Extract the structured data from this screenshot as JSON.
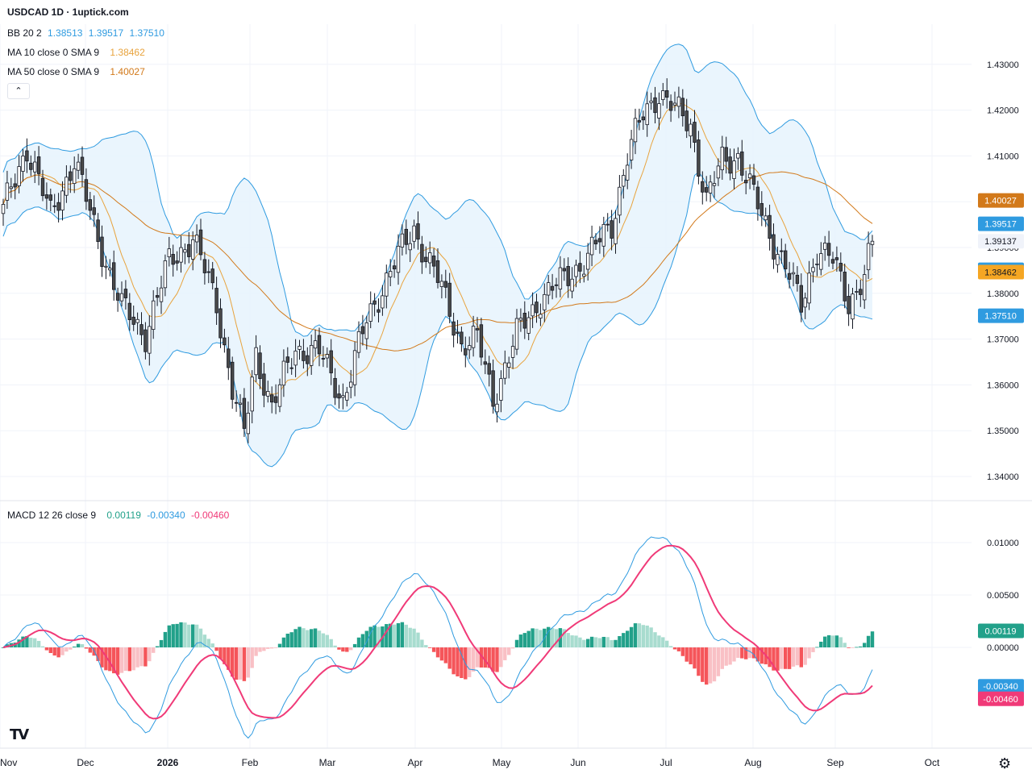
{
  "header": {
    "title": "USDCAD 1D · 1uptick.com",
    "bb": {
      "label": "BB 20 2",
      "basis": "1.38513",
      "upper": "1.39517",
      "lower": "1.37510"
    },
    "ma10": {
      "label": "MA 10 close 0 SMA 9",
      "value": "1.38462"
    },
    "ma50": {
      "label": "MA 50 close 0 SMA 9",
      "value": "1.40027"
    },
    "collapse_icon": "chevron-up-icon"
  },
  "macd_legend": {
    "label": "MACD 12 26 close 9",
    "hist": "0.00119",
    "macd": "-0.00340",
    "signal": "-0.00460"
  },
  "colors": {
    "up": "#ffffff",
    "down": "#4a4a4a",
    "bb_line": "#2f9be0",
    "bb_fill": "#e6f3fd",
    "ma10": "#e8a33d",
    "ma50": "#d2791a",
    "macd": "#2f9be0",
    "signal": "#f03a78",
    "hist_pos_strong": "#22a18a",
    "hist_pos_weak": "#a8dccf",
    "hist_neg_strong": "#f5555a",
    "hist_neg_weak": "#f9c0c5"
  },
  "chart_data": [
    {
      "type": "candlestick",
      "title": "USDCAD 1D",
      "xlabel": "",
      "ylabel": "",
      "ylim": [
        1.335,
        1.44
      ],
      "x_ticks": [
        "Nov",
        "Dec",
        "2026",
        "Feb",
        "Mar",
        "Apr",
        "May",
        "Jun",
        "Jul",
        "Aug",
        "Sep",
        "Oct"
      ],
      "y_ticks": [
        "1.43000",
        "1.42000",
        "1.41000",
        "1.40000",
        "1.39000",
        "1.38000",
        "1.37000",
        "1.36000",
        "1.35000",
        "1.34000"
      ],
      "price_anchors": [
        {
          "x": 0,
          "close": 1.398
        },
        {
          "x": 6,
          "close": 1.412
        },
        {
          "x": 12,
          "close": 1.397
        },
        {
          "x": 18,
          "close": 1.409
        },
        {
          "x": 24,
          "close": 1.392
        },
        {
          "x": 30,
          "close": 1.377
        },
        {
          "x": 36,
          "close": 1.371
        },
        {
          "x": 42,
          "close": 1.387
        },
        {
          "x": 48,
          "close": 1.392
        },
        {
          "x": 54,
          "close": 1.378
        },
        {
          "x": 58,
          "close": 1.359
        },
        {
          "x": 61,
          "close": 1.349
        },
        {
          "x": 64,
          "close": 1.367
        },
        {
          "x": 68,
          "close": 1.355
        },
        {
          "x": 74,
          "close": 1.368
        },
        {
          "x": 80,
          "close": 1.367
        },
        {
          "x": 86,
          "close": 1.357
        },
        {
          "x": 92,
          "close": 1.374
        },
        {
          "x": 98,
          "close": 1.385
        },
        {
          "x": 104,
          "close": 1.394
        },
        {
          "x": 110,
          "close": 1.383
        },
        {
          "x": 116,
          "close": 1.369
        },
        {
          "x": 120,
          "close": 1.37
        },
        {
          "x": 124,
          "close": 1.357
        },
        {
          "x": 130,
          "close": 1.371
        },
        {
          "x": 136,
          "close": 1.379
        },
        {
          "x": 142,
          "close": 1.383
        },
        {
          "x": 148,
          "close": 1.388
        },
        {
          "x": 154,
          "close": 1.395
        },
        {
          "x": 158,
          "close": 1.41
        },
        {
          "x": 162,
          "close": 1.419
        },
        {
          "x": 166,
          "close": 1.424
        },
        {
          "x": 170,
          "close": 1.42
        },
        {
          "x": 174,
          "close": 1.417
        },
        {
          "x": 178,
          "close": 1.4
        },
        {
          "x": 182,
          "close": 1.409
        },
        {
          "x": 186,
          "close": 1.41
        },
        {
          "x": 190,
          "close": 1.401
        },
        {
          "x": 194,
          "close": 1.393
        },
        {
          "x": 198,
          "close": 1.386
        },
        {
          "x": 202,
          "close": 1.377
        },
        {
          "x": 206,
          "close": 1.39
        },
        {
          "x": 210,
          "close": 1.387
        },
        {
          "x": 214,
          "close": 1.378
        },
        {
          "x": 218,
          "close": 1.384
        },
        {
          "x": 220,
          "close": 1.391
        }
      ],
      "last_price": "1.39137",
      "price_labels": [
        "1.40027",
        "1.39517",
        "1.39137",
        "1.38513",
        "1.38462",
        "1.37510"
      ]
    },
    {
      "type": "line",
      "title": "MACD 12 26 close 9",
      "ylim": [
        -0.0085,
        0.0125
      ],
      "y_ticks": [
        "0.01000",
        "0.00500",
        "0.00000"
      ],
      "series": [
        {
          "name": "MACD",
          "color": "#2f9be0"
        },
        {
          "name": "Signal",
          "color": "#f03a78"
        },
        {
          "name": "Histogram",
          "color": "#22a18a"
        }
      ],
      "value_labels": [
        "0.00119",
        "-0.00340",
        "-0.00460"
      ]
    }
  ]
}
